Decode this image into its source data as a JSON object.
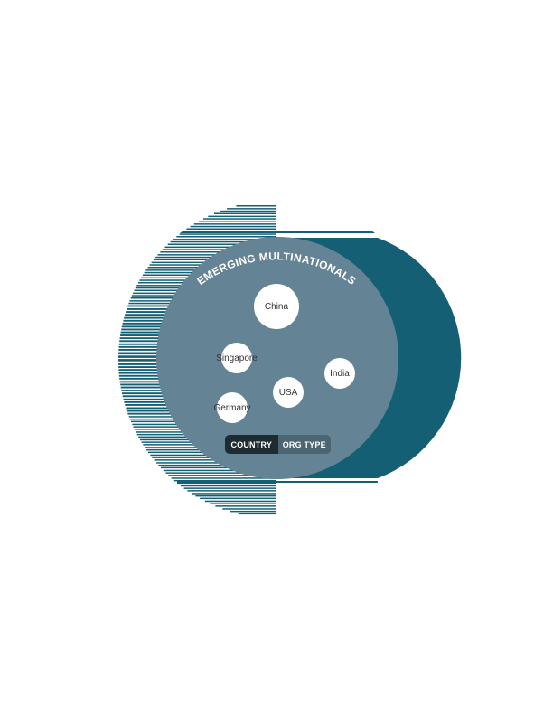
{
  "diagram": {
    "title": "EMERGING MULTINATIONALS",
    "bubbles": [
      {
        "label": "China"
      },
      {
        "label": "Singapore"
      },
      {
        "label": "India"
      },
      {
        "label": "USA"
      },
      {
        "label": "Germany"
      }
    ],
    "toggle": {
      "options": [
        {
          "label": "COUNTRY",
          "active": true
        },
        {
          "label": "ORG TYPE",
          "active": false
        }
      ]
    }
  },
  "colors": {
    "outer_ring": "#155f74",
    "inner_circle": "#648395",
    "bubble": "#ffffff",
    "toggle_active": "#1e2b30",
    "toggle_inactive": "#4d6570"
  }
}
